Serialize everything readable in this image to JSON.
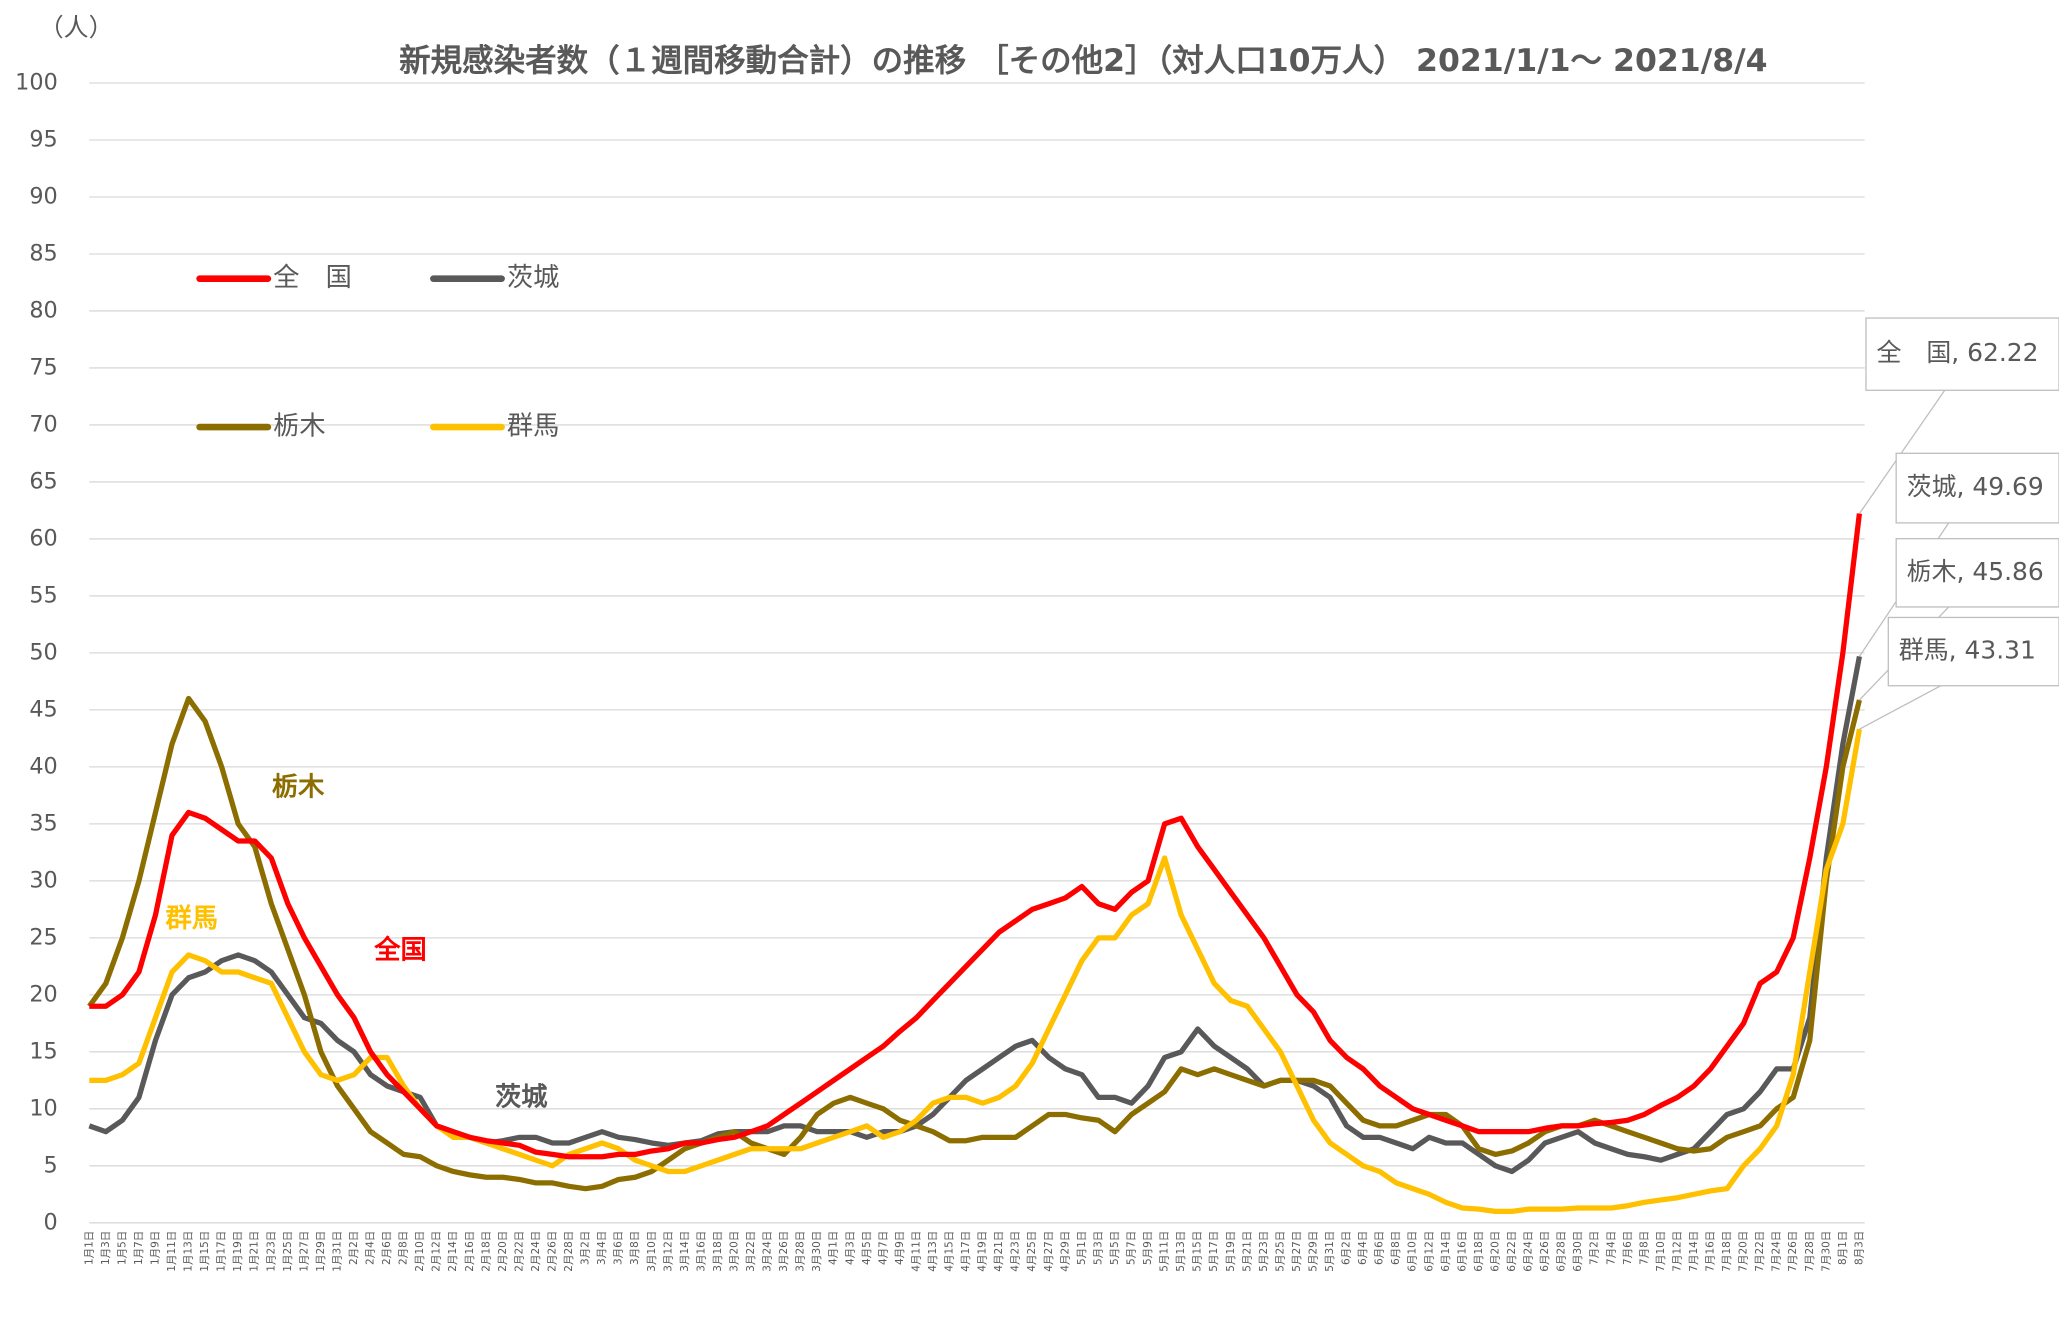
{
  "chart_data": {
    "type": "line",
    "title": "新規感染者数（１週間移動合計）の推移 ［その他2］（対人口10万人） 2021/1/1～ 2021/8/4",
    "y_unit": "（人）",
    "categories": [
      "1月1日",
      "1月3日",
      "1月5日",
      "1月7日",
      "1月9日",
      "1月11日",
      "1月13日",
      "1月15日",
      "1月17日",
      "1月19日",
      "1月21日",
      "1月23日",
      "1月25日",
      "1月27日",
      "1月29日",
      "1月31日",
      "2月2日",
      "2月4日",
      "2月6日",
      "2月8日",
      "2月10日",
      "2月12日",
      "2月14日",
      "2月16日",
      "2月18日",
      "2月20日",
      "2月22日",
      "2月24日",
      "2月26日",
      "2月28日",
      "3月2日",
      "3月4日",
      "3月6日",
      "3月8日",
      "3月10日",
      "3月12日",
      "3月14日",
      "3月16日",
      "3月18日",
      "3月20日",
      "3月22日",
      "3月24日",
      "3月26日",
      "3月28日",
      "3月30日",
      "4月1日",
      "4月3日",
      "4月5日",
      "4月7日",
      "4月9日",
      "4月11日",
      "4月13日",
      "4月15日",
      "4月17日",
      "4月19日",
      "4月21日",
      "4月23日",
      "4月25日",
      "4月27日",
      "4月29日",
      "5月1日",
      "5月3日",
      "5月5日",
      "5月7日",
      "5月9日",
      "5月11日",
      "5月13日",
      "5月15日",
      "5月17日",
      "5月19日",
      "5月21日",
      "5月23日",
      "5月25日",
      "5月27日",
      "5月29日",
      "5月31日",
      "6月2日",
      "6月4日",
      "6月6日",
      "6月8日",
      "6月10日",
      "6月12日",
      "6月14日",
      "6月16日",
      "6月18日",
      "6月20日",
      "6月22日",
      "6月24日",
      "6月26日",
      "6月28日",
      "6月30日",
      "7月2日",
      "7月4日",
      "7月6日",
      "7月8日",
      "7月10日",
      "7月12日",
      "7月14日",
      "7月16日",
      "7月18日",
      "7月20日",
      "7月22日",
      "7月24日",
      "7月26日",
      "7月28日",
      "7月30日",
      "8月1日",
      "8月3日"
    ],
    "series": [
      {
        "name": "全　国",
        "color": "#ff0000",
        "annotation": "全国",
        "end_label": "全　国, 62.22",
        "values": [
          19,
          19,
          20,
          22,
          27,
          34,
          36,
          35.5,
          34.5,
          33.5,
          33.5,
          32,
          28,
          25,
          22.5,
          20,
          18,
          15,
          13,
          11.5,
          10,
          8.5,
          8,
          7.5,
          7.2,
          7,
          6.8,
          6.2,
          6,
          5.8,
          5.8,
          5.8,
          6,
          6,
          6.3,
          6.5,
          7,
          7,
          7.3,
          7.5,
          8,
          8.5,
          9.5,
          10.5,
          11.5,
          12.5,
          13.5,
          14.5,
          15.5,
          16.8,
          18,
          19.5,
          21,
          22.5,
          24,
          25.5,
          26.5,
          27.5,
          28,
          28.5,
          29.5,
          28,
          27.5,
          29,
          30,
          35,
          35.5,
          33,
          31,
          29,
          27,
          25,
          22.5,
          20,
          18.5,
          16,
          14.5,
          13.5,
          12,
          11,
          10,
          9.5,
          9,
          8.5,
          8,
          8,
          8,
          8,
          8.3,
          8.5,
          8.5,
          8.7,
          8.8,
          9,
          9.5,
          10.3,
          11,
          12,
          13.5,
          15.5,
          17.5,
          21,
          22,
          25,
          32,
          40,
          50,
          62.22
        ]
      },
      {
        "name": "茨城",
        "color": "#595959",
        "annotation": "茨城",
        "end_label": "茨城, 49.69",
        "values": [
          8.5,
          8,
          9,
          11,
          16,
          20,
          21.5,
          22,
          23,
          23.5,
          23,
          22,
          20,
          18,
          17.5,
          16,
          15,
          13,
          12,
          11.5,
          11,
          8.5,
          8,
          7.5,
          7,
          7.2,
          7.5,
          7.5,
          7,
          7,
          7.5,
          8,
          7.5,
          7.3,
          7,
          6.8,
          7,
          7.2,
          7.8,
          8,
          8,
          8,
          8.5,
          8.5,
          8,
          8,
          8,
          7.5,
          8,
          8,
          8.5,
          9.5,
          11,
          12.5,
          13.5,
          14.5,
          15.5,
          16,
          14.5,
          13.5,
          13,
          11,
          11,
          10.5,
          12,
          14.5,
          15,
          17,
          15.5,
          14.5,
          13.5,
          12,
          12.5,
          12.5,
          12,
          11,
          8.5,
          7.5,
          7.5,
          7,
          6.5,
          7.5,
          7,
          7,
          6,
          5,
          4.5,
          5.5,
          7,
          7.5,
          8,
          7,
          6.5,
          6,
          5.8,
          5.5,
          6,
          6.5,
          8,
          9.5,
          10,
          11.5,
          13.5,
          13.5,
          18,
          32,
          42,
          49.69
        ]
      },
      {
        "name": "栃木",
        "color": "#8c6d00",
        "annotation": "栃木",
        "end_label": "栃木, 45.86",
        "values": [
          19,
          21,
          25,
          30,
          36,
          42,
          46,
          44,
          40,
          35,
          33,
          28,
          24,
          20,
          15,
          12,
          10,
          8,
          7,
          6,
          5.8,
          5,
          4.5,
          4.2,
          4,
          4,
          3.8,
          3.5,
          3.5,
          3.2,
          3,
          3.2,
          3.8,
          4,
          4.5,
          5.5,
          6.5,
          7,
          7.5,
          8,
          7,
          6.5,
          6,
          7.5,
          9.5,
          10.5,
          11,
          10.5,
          10,
          9,
          8.5,
          8,
          7.2,
          7.2,
          7.5,
          7.5,
          7.5,
          8.5,
          9.5,
          9.5,
          9.2,
          9,
          8,
          9.5,
          10.5,
          11.5,
          13.5,
          13,
          13.5,
          13,
          12.5,
          12,
          12.5,
          12.5,
          12.5,
          12,
          10.5,
          9,
          8.5,
          8.5,
          9,
          9.5,
          9.5,
          8.5,
          6.5,
          6,
          6.3,
          7,
          8,
          8.5,
          8.5,
          9,
          8.5,
          8,
          7.5,
          7,
          6.5,
          6.3,
          6.5,
          7.5,
          8,
          8.5,
          10,
          11,
          16,
          30,
          40,
          45.86
        ]
      },
      {
        "name": "群馬",
        "color": "#ffc000",
        "annotation": "群馬",
        "end_label": "群馬, 43.31",
        "values": [
          12.5,
          12.5,
          13,
          14,
          18,
          22,
          23.5,
          23,
          22,
          22,
          21.5,
          21,
          18,
          15,
          13,
          12.5,
          13,
          14.5,
          14.5,
          12,
          10,
          8.5,
          7.5,
          7.5,
          7,
          6.5,
          6,
          5.5,
          5,
          6,
          6.5,
          7,
          6.5,
          5.5,
          5,
          4.5,
          4.5,
          5,
          5.5,
          6,
          6.5,
          6.5,
          6.5,
          6.5,
          7,
          7.5,
          8,
          8.5,
          7.5,
          8,
          9,
          10.5,
          11,
          11,
          10.5,
          11,
          12,
          14,
          17,
          20,
          23,
          25,
          25,
          27,
          28,
          32,
          27,
          24,
          21,
          19.5,
          19,
          17,
          15,
          12,
          9,
          7,
          6,
          5,
          4.5,
          3.5,
          3,
          2.5,
          1.8,
          1.3,
          1.2,
          1,
          1,
          1.2,
          1.2,
          1.2,
          1.3,
          1.3,
          1.3,
          1.5,
          1.8,
          2,
          2.2,
          2.5,
          2.8,
          3,
          5,
          6.5,
          8.5,
          13,
          22,
          31,
          35,
          43.31
        ]
      }
    ],
    "ylim": [
      0,
      100
    ],
    "yticks": [
      0,
      5,
      10,
      15,
      20,
      25,
      30,
      35,
      40,
      45,
      50,
      55,
      60,
      65,
      70,
      75,
      80,
      85,
      90,
      95,
      100
    ],
    "grid": true
  }
}
